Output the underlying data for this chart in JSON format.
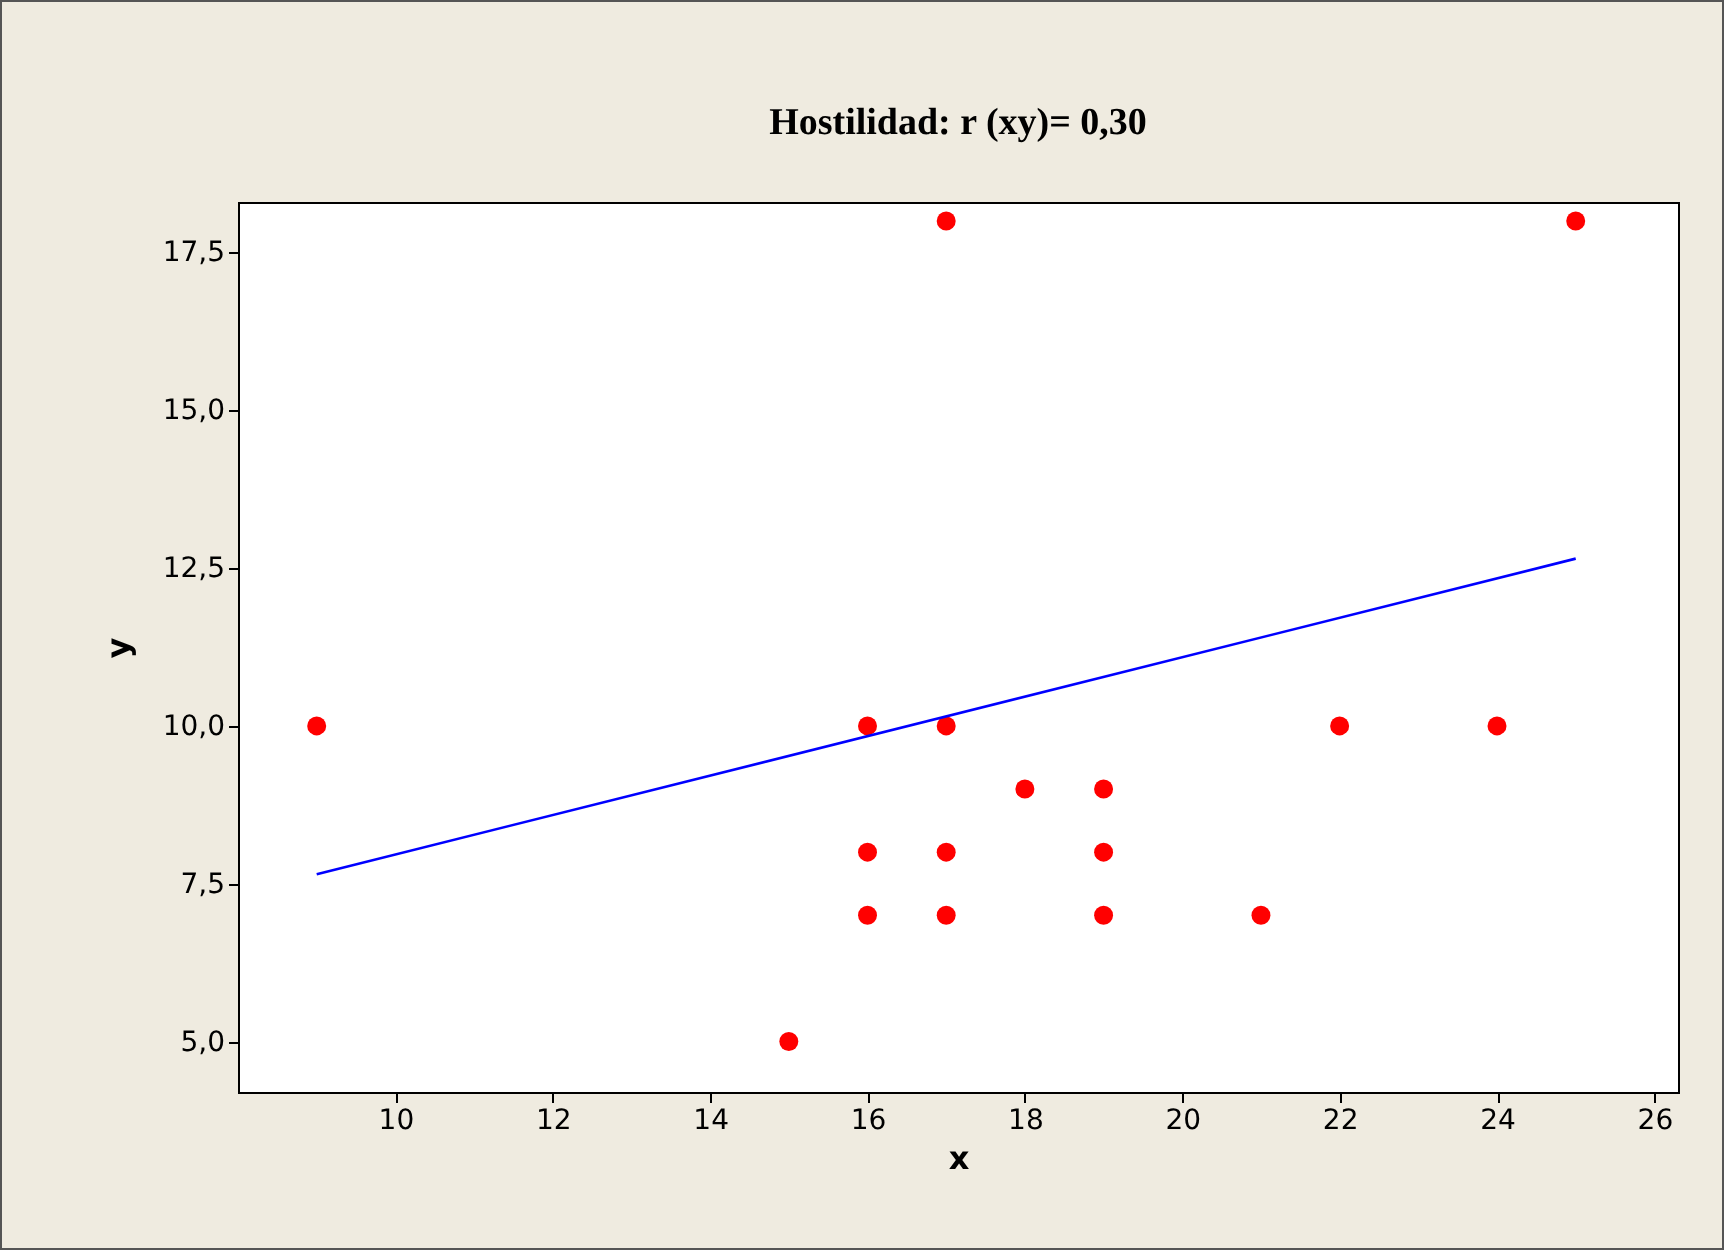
{
  "chart_data": {
    "type": "scatter",
    "title": "Hostilidad: r (xy)= 0,30",
    "xlabel": "x",
    "ylabel": "y",
    "xlim": [
      8.0,
      26.3
    ],
    "ylim": [
      4.2,
      18.3
    ],
    "xticks": [
      10,
      12,
      14,
      16,
      18,
      20,
      22,
      24,
      26
    ],
    "yticks": [
      {
        "value": 5,
        "label": "5,0"
      },
      {
        "value": 7.5,
        "label": "7,5"
      },
      {
        "value": 10,
        "label": "10,0"
      },
      {
        "value": 12.5,
        "label": "12,5"
      },
      {
        "value": 15,
        "label": "15,0"
      },
      {
        "value": 17.5,
        "label": "17,5"
      }
    ],
    "grid": false,
    "series": [
      {
        "type": "scatter",
        "marker": "circle",
        "color": "#ff0000",
        "x": [
          9,
          15,
          16,
          16,
          16,
          17,
          17,
          17,
          17,
          18,
          19,
          19,
          19,
          21,
          22,
          24,
          25
        ],
        "values": [
          10,
          5,
          10,
          8,
          7,
          18,
          10,
          8,
          7,
          9,
          9,
          8,
          7,
          7,
          10,
          10,
          18
        ]
      },
      {
        "type": "line",
        "color": "#0000ff",
        "x": [
          9,
          25
        ],
        "values": [
          7.65,
          12.65
        ]
      }
    ]
  }
}
